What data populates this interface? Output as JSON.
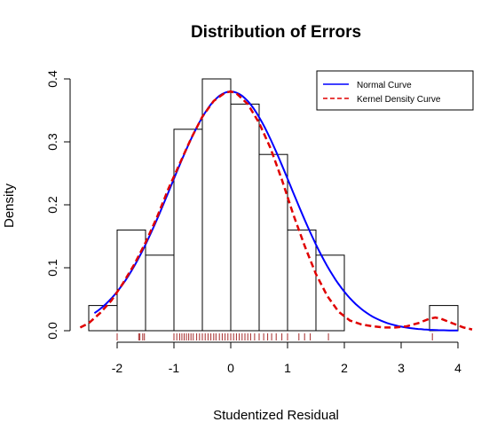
{
  "chart_data": {
    "type": "histogram",
    "title": "Distribution of Errors",
    "xlabel": "Studentized Residual",
    "ylabel": "Density",
    "xlim": [
      -2.5,
      4.25
    ],
    "ylim": [
      0,
      0.4
    ],
    "x_ticks": [
      -2,
      -1,
      0,
      1,
      2,
      3,
      4
    ],
    "x_tick_labels": [
      "-2",
      "-1",
      "0",
      "1",
      "2",
      "3",
      "4"
    ],
    "y_ticks": [
      0.0,
      0.1,
      0.2,
      0.3,
      0.4
    ],
    "y_tick_labels": [
      "0.0",
      "0.1",
      "0.2",
      "0.3",
      "0.4"
    ],
    "bins": [
      {
        "x0": -2.0,
        "x1": -1.5,
        "density": 0.16
      },
      {
        "x0": -1.5,
        "x1": -1.0,
        "density": 0.12
      },
      {
        "x0": -1.0,
        "x1": -0.5,
        "density": 0.32
      },
      {
        "x0": -0.5,
        "x1": 0.0,
        "density": 0.4
      },
      {
        "x0": 0.0,
        "x1": 0.5,
        "density": 0.36
      },
      {
        "x0": 0.5,
        "x1": 1.0,
        "density": 0.28
      },
      {
        "x0": 1.0,
        "x1": 1.5,
        "density": 0.16
      },
      {
        "x0": 1.5,
        "x1": 2.0,
        "density": 0.12
      },
      {
        "x0": 3.5,
        "x1": 4.0,
        "density": 0.04
      }
    ],
    "partial_bin_left": {
      "x0": -2.5,
      "x1": -2.0,
      "density": 0.04
    },
    "series": [
      {
        "name": "Normal Curve",
        "color": "#0000ff",
        "style": "solid",
        "mean": 0.0,
        "sd": 1.05
      },
      {
        "name": "Kernel Density Curve",
        "color": "#e00000",
        "style": "dashed",
        "x": [
          -2.65,
          -2.5,
          -2.3,
          -2.1,
          -1.9,
          -1.7,
          -1.5,
          -1.3,
          -1.1,
          -0.9,
          -0.7,
          -0.5,
          -0.3,
          -0.1,
          0.0,
          0.1,
          0.3,
          0.5,
          0.7,
          0.9,
          1.1,
          1.3,
          1.5,
          1.7,
          1.9,
          2.1,
          2.3,
          2.5,
          2.7,
          2.9,
          3.1,
          3.3,
          3.5,
          3.6,
          3.7,
          3.9,
          4.1,
          4.25
        ],
        "y": [
          0.005,
          0.012,
          0.028,
          0.048,
          0.075,
          0.105,
          0.14,
          0.18,
          0.225,
          0.265,
          0.305,
          0.34,
          0.365,
          0.378,
          0.38,
          0.377,
          0.36,
          0.33,
          0.29,
          0.24,
          0.185,
          0.135,
          0.09,
          0.055,
          0.03,
          0.016,
          0.01,
          0.007,
          0.005,
          0.005,
          0.007,
          0.012,
          0.019,
          0.021,
          0.019,
          0.012,
          0.005,
          0.002
        ]
      }
    ],
    "rug": {
      "color": "#a52a2a",
      "values": [
        -2.0,
        -1.62,
        -1.6,
        -1.55,
        -1.52,
        -1.0,
        -0.95,
        -0.9,
        -0.86,
        -0.82,
        -0.78,
        -0.74,
        -0.7,
        -0.66,
        -0.6,
        -0.55,
        -0.5,
        -0.45,
        -0.4,
        -0.35,
        -0.3,
        -0.26,
        -0.2,
        -0.15,
        -0.1,
        -0.05,
        0.0,
        0.05,
        0.1,
        0.15,
        0.2,
        0.25,
        0.3,
        0.35,
        0.42,
        0.5,
        0.58,
        0.65,
        0.72,
        0.8,
        0.9,
        1.0,
        1.2,
        1.3,
        1.4,
        1.72,
        3.55
      ]
    },
    "legend": {
      "position": "top-right"
    },
    "grid": false
  }
}
